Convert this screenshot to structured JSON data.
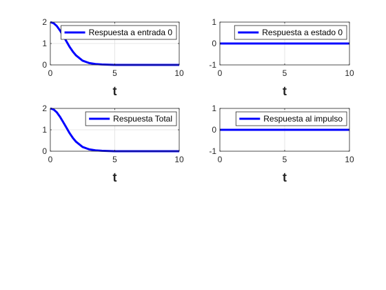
{
  "figure": {
    "background": "#ffffff"
  },
  "chart_data": [
    {
      "type": "line",
      "xlabel": "t",
      "xlim": [
        0,
        10
      ],
      "ylim": [
        0,
        2
      ],
      "xticks": [
        "0",
        "5",
        "10"
      ],
      "yticks": [
        "0",
        "1",
        "2"
      ],
      "grid": true,
      "legend_position": "top-right",
      "series": [
        {
          "name": "Respuesta a entrada 0",
          "color": "#0000ff",
          "x": [
            0,
            0.25,
            0.5,
            0.75,
            1,
            1.25,
            1.5,
            1.75,
            2,
            2.5,
            3,
            3.5,
            4,
            5,
            6,
            7,
            8,
            9,
            10
          ],
          "y": [
            2.0,
            1.95,
            1.82,
            1.61,
            1.36,
            1.1,
            0.84,
            0.62,
            0.44,
            0.2,
            0.09,
            0.04,
            0.02,
            0,
            0,
            0,
            0,
            0,
            0
          ]
        }
      ]
    },
    {
      "type": "line",
      "xlabel": "t",
      "xlim": [
        0,
        10
      ],
      "ylim": [
        -1,
        1
      ],
      "xticks": [
        "0",
        "5",
        "10"
      ],
      "yticks": [
        "-1",
        "0",
        "1"
      ],
      "grid": true,
      "legend_position": "top-right",
      "series": [
        {
          "name": "Respuesta a estado 0",
          "color": "#0000ff",
          "x": [
            0,
            10
          ],
          "y": [
            0,
            0
          ]
        }
      ]
    },
    {
      "type": "line",
      "xlabel": "t",
      "xlim": [
        0,
        10
      ],
      "ylim": [
        0,
        2
      ],
      "xticks": [
        "0",
        "5",
        "10"
      ],
      "yticks": [
        "0",
        "1",
        "2"
      ],
      "grid": true,
      "legend_position": "top-right",
      "series": [
        {
          "name": "Respuesta Total",
          "color": "#0000ff",
          "x": [
            0,
            0.25,
            0.5,
            0.75,
            1,
            1.25,
            1.5,
            1.75,
            2,
            2.5,
            3,
            3.5,
            4,
            5,
            6,
            7,
            8,
            9,
            10
          ],
          "y": [
            2.0,
            1.95,
            1.82,
            1.61,
            1.36,
            1.1,
            0.84,
            0.62,
            0.44,
            0.2,
            0.09,
            0.04,
            0.02,
            0,
            0,
            0,
            0,
            0,
            0
          ]
        }
      ]
    },
    {
      "type": "line",
      "xlabel": "t",
      "xlim": [
        0,
        10
      ],
      "ylim": [
        -1,
        1
      ],
      "xticks": [
        "0",
        "5",
        "10"
      ],
      "yticks": [
        "-1",
        "0",
        "1"
      ],
      "grid": true,
      "legend_position": "top-right",
      "series": [
        {
          "name": "Respuesta al impulso",
          "color": "#0000ff",
          "x": [
            0,
            10
          ],
          "y": [
            0,
            0
          ]
        }
      ]
    }
  ]
}
